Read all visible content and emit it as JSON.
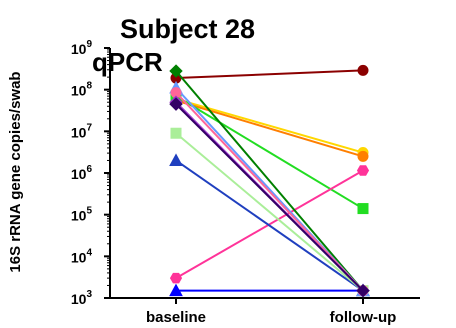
{
  "chart_data": {
    "type": "line",
    "title": "Subject 28",
    "subtitle": "qPCR",
    "ylabel": "16S rRNA gene copies/swab",
    "xlabel": "",
    "categories": [
      "baseline",
      "follow-up"
    ],
    "y_scale": "log10",
    "ylim": [
      1000,
      1000000000
    ],
    "y_tick_labels": [
      {
        "value": 1000,
        "base": "10",
        "exp": "3"
      },
      {
        "value": 10000,
        "base": "10",
        "exp": "4"
      },
      {
        "value": 100000,
        "base": "10",
        "exp": "5"
      },
      {
        "value": 1000000,
        "base": "10",
        "exp": "6"
      },
      {
        "value": 10000000,
        "base": "10",
        "exp": "7"
      },
      {
        "value": 100000000,
        "base": "10",
        "exp": "8"
      },
      {
        "value": 1000000000,
        "base": "10",
        "exp": "9"
      }
    ],
    "grid": false,
    "legend": "none",
    "series": [
      {
        "color": "#8b0000",
        "marker": "circle",
        "values": [
          190000000,
          290000000
        ]
      },
      {
        "color": "#ffd700",
        "marker": "circle",
        "values": [
          60000000,
          3100000
        ]
      },
      {
        "color": "#ff7f00",
        "marker": "circle",
        "values": [
          55000000,
          2500000
        ]
      },
      {
        "color": "#22dd22",
        "marker": "square",
        "values": [
          70000000,
          140000
        ]
      },
      {
        "color": "#ff3399",
        "marker": "hexagon",
        "values": [
          3000,
          1150000
        ]
      },
      {
        "color": "#0000ff",
        "marker": "triangle",
        "values": [
          1500,
          1500
        ]
      },
      {
        "color": "#008000",
        "marker": "diamond",
        "values": [
          280000000,
          1500
        ]
      },
      {
        "color": "#1f3fbf",
        "marker": "triangle",
        "values": [
          2000000,
          1500
        ]
      },
      {
        "color": "#aaee99",
        "marker": "square",
        "values": [
          9000000,
          1500
        ]
      },
      {
        "color": "#6699ff",
        "marker": "triangle",
        "values": [
          110000000,
          1500
        ]
      },
      {
        "color": "#ff6699",
        "marker": "circle",
        "values": [
          85000000,
          1500
        ]
      },
      {
        "color": "#9933cc",
        "marker": "diamond",
        "values": [
          50000000,
          1500
        ]
      },
      {
        "color": "#330066",
        "marker": "diamond",
        "values": [
          45000000,
          1500
        ]
      }
    ]
  }
}
